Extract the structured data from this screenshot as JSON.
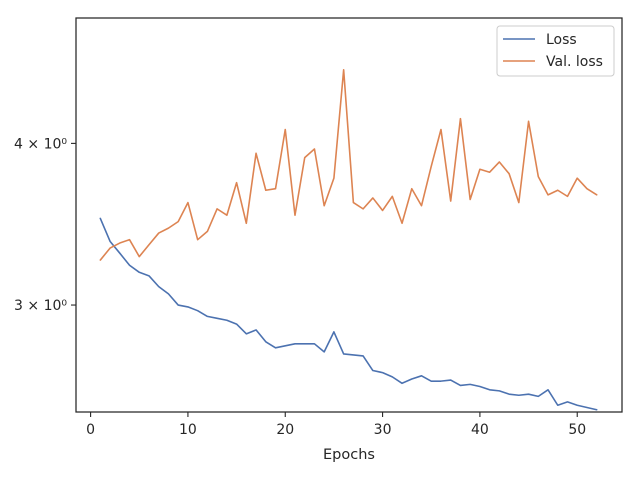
{
  "chart_data": {
    "type": "line",
    "xlabel": "Epochs",
    "ylabel": "",
    "yscale": "log",
    "xlim": [
      -1.5,
      54.6
    ],
    "ylim": [
      2.48,
      5.0
    ],
    "x_ticks": [
      0,
      10,
      20,
      30,
      40,
      50
    ],
    "x_tick_labels": [
      "0",
      "10",
      "20",
      "30",
      "40",
      "50"
    ],
    "y_ticks": [
      3,
      4
    ],
    "y_tick_labels": [
      "3 × 10⁰",
      "4 × 10⁰"
    ],
    "grid": false,
    "legend_position": "top-right",
    "x": [
      1,
      2,
      3,
      4,
      5,
      6,
      7,
      8,
      9,
      10,
      11,
      12,
      13,
      14,
      15,
      16,
      17,
      18,
      19,
      20,
      21,
      22,
      23,
      24,
      25,
      26,
      27,
      28,
      29,
      30,
      31,
      32,
      33,
      34,
      35,
      36,
      37,
      38,
      39,
      40,
      41,
      42,
      43,
      44,
      45,
      46,
      47,
      48,
      49,
      50,
      51,
      52
    ],
    "series": [
      {
        "name": "Loss",
        "color": "#4c72b0",
        "values": [
          3.5,
          3.36,
          3.29,
          3.22,
          3.18,
          3.16,
          3.1,
          3.06,
          3.0,
          2.99,
          2.97,
          2.94,
          2.93,
          2.92,
          2.9,
          2.85,
          2.87,
          2.81,
          2.78,
          2.79,
          2.8,
          2.8,
          2.8,
          2.76,
          2.86,
          2.75,
          2.745,
          2.74,
          2.67,
          2.66,
          2.64,
          2.61,
          2.63,
          2.645,
          2.62,
          2.62,
          2.625,
          2.6,
          2.605,
          2.595,
          2.58,
          2.575,
          2.56,
          2.555,
          2.56,
          2.55,
          2.58,
          2.51,
          2.525,
          2.51,
          2.5,
          2.49
        ]
      },
      {
        "name": "Val. loss",
        "color": "#dd8452",
        "values": [
          3.25,
          3.32,
          3.35,
          3.37,
          3.27,
          3.34,
          3.41,
          3.44,
          3.48,
          3.6,
          3.37,
          3.42,
          3.56,
          3.52,
          3.73,
          3.47,
          3.93,
          3.68,
          3.69,
          4.1,
          3.52,
          3.9,
          3.96,
          3.58,
          3.76,
          4.56,
          3.6,
          3.56,
          3.63,
          3.55,
          3.64,
          3.47,
          3.69,
          3.58,
          3.84,
          4.1,
          3.61,
          4.18,
          3.62,
          3.82,
          3.8,
          3.87,
          3.79,
          3.6,
          4.16,
          3.77,
          3.65,
          3.68,
          3.64,
          3.76,
          3.69,
          3.65
        ]
      }
    ]
  }
}
